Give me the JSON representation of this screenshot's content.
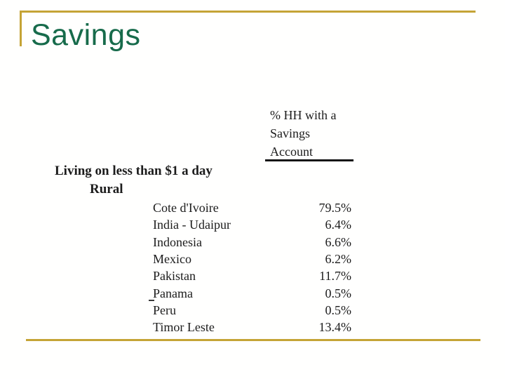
{
  "slide": {
    "title": "Savings"
  },
  "theme": {
    "accent_gold": "#c5a436",
    "title_green": "#176b4b",
    "text_color": "#1c1c1c"
  },
  "table": {
    "value_column_header_lines": [
      "% HH with a",
      "Savings",
      "Account"
    ],
    "group_header": "Living on less than $1 a day",
    "subgroup_header": "Rural",
    "rows": [
      {
        "country": "Cote d'Ivoire",
        "value": "79.5%"
      },
      {
        "country": "India - Udaipur",
        "value": "6.4%"
      },
      {
        "country": "Indonesia",
        "value": "6.6%"
      },
      {
        "country": "Mexico",
        "value": "6.2%"
      },
      {
        "country": "Pakistan",
        "value": "11.7%"
      },
      {
        "country": "Panama",
        "value": "0.5%"
      },
      {
        "country": "Peru",
        "value": "0.5%"
      },
      {
        "country": "Timor Leste",
        "value": "13.4%"
      }
    ]
  }
}
